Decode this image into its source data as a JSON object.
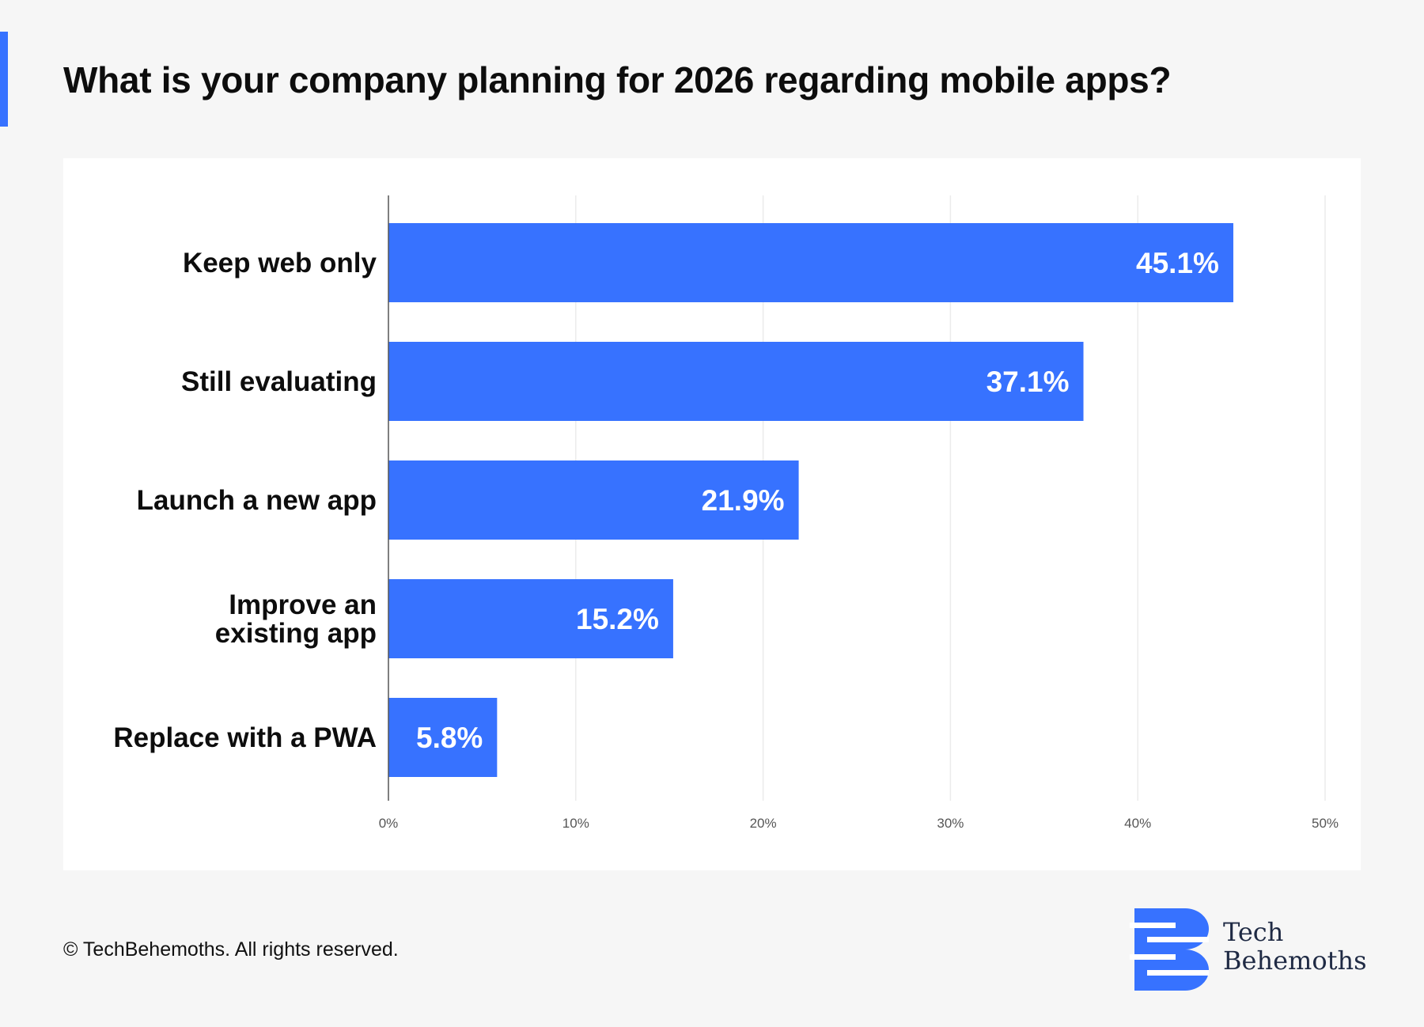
{
  "title": "What is your company planning for 2026 regarding mobile apps?",
  "footer": "© TechBehemoths. All rights reserved.",
  "logo": {
    "line1": "Tech",
    "line2": "Behemoths",
    "icon": "techbehemoths-logo-icon"
  },
  "colors": {
    "accent": "#3772ff",
    "bar": "#3772ff",
    "background": "#f6f6f6",
    "panel": "#ffffff"
  },
  "chart_data": {
    "type": "bar",
    "orientation": "horizontal",
    "categories": [
      "Keep web only",
      "Still evaluating",
      "Launch a new app",
      [
        "Improve an",
        "existing app"
      ],
      "Replace with a PWA"
    ],
    "values": [
      45.1,
      37.1,
      21.9,
      15.2,
      5.8
    ],
    "value_labels": [
      "45.1%",
      "37.1%",
      "21.9%",
      "15.2%",
      "5.8%"
    ],
    "xlim": [
      0,
      50
    ],
    "xticks": [
      0,
      10,
      20,
      30,
      40,
      50
    ],
    "xtick_labels": [
      "0%",
      "10%",
      "20%",
      "30%",
      "40%",
      "50%"
    ],
    "grid": "vertical",
    "xlabel": "",
    "ylabel": ""
  }
}
